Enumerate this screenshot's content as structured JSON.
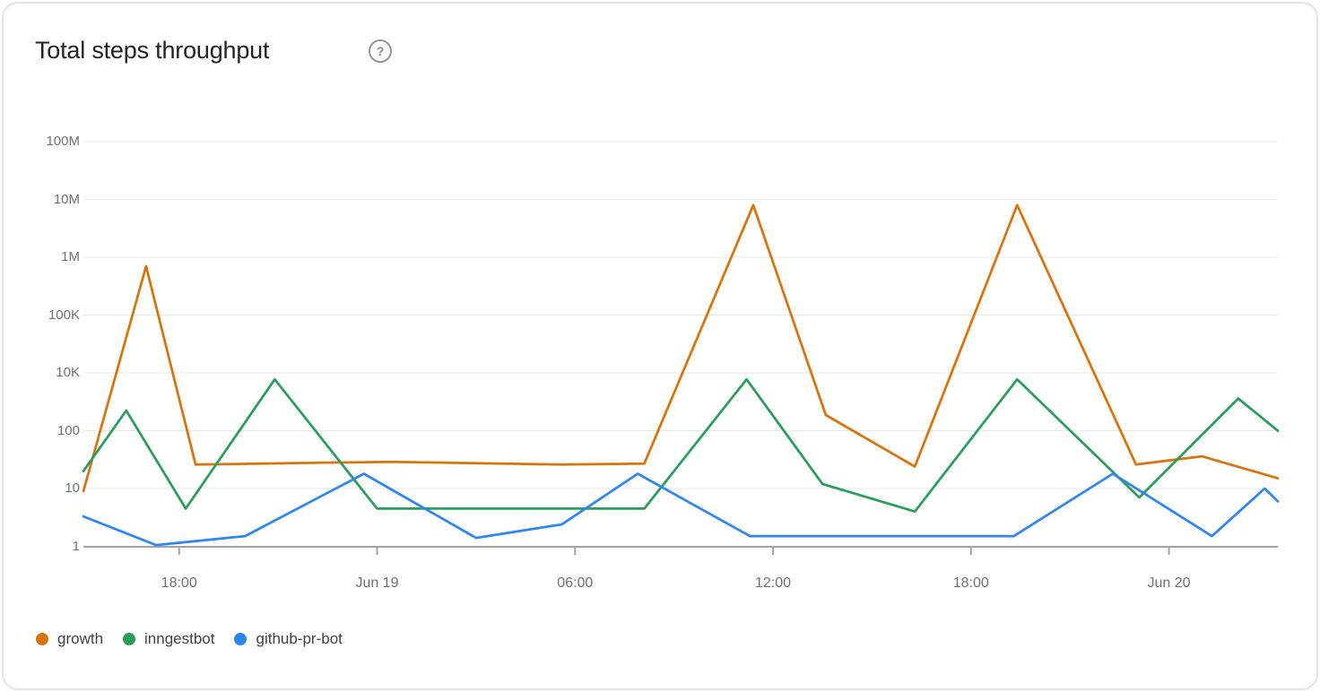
{
  "header": {
    "help_glyph": "?"
  },
  "chart_data": {
    "type": "line",
    "title": "Total steps throughput",
    "y_scale": "log",
    "y_axis_labels_top_to_bottom": [
      "100M",
      "10M",
      "1M",
      "100K",
      "10K",
      "100",
      "10",
      "1"
    ],
    "y_axis_anchor_exponents_bottom_to_top": [
      0,
      1,
      2,
      4,
      5,
      6,
      7,
      8
    ],
    "x_unit": "hours since Jun 18 15:00",
    "x_range": {
      "t_min": 0.1,
      "t_max": 36.3
    },
    "x_axis_ticks": [
      {
        "t": 3,
        "label": "18:00"
      },
      {
        "t": 9,
        "label": "Jun 19"
      },
      {
        "t": 15,
        "label": "06:00"
      },
      {
        "t": 21,
        "label": "12:00"
      },
      {
        "t": 27,
        "label": "18:00"
      },
      {
        "t": 33,
        "label": "Jun 20"
      }
    ],
    "series": [
      {
        "name": "growth",
        "color": "#D9730D",
        "points": [
          {
            "t": 0.1,
            "v": 9
          },
          {
            "t": 2.0,
            "v": 700000
          },
          {
            "t": 3.5,
            "v": 26
          },
          {
            "t": 9.4,
            "v": 29
          },
          {
            "t": 14.6,
            "v": 26
          },
          {
            "t": 17.1,
            "v": 27
          },
          {
            "t": 20.4,
            "v": 8000000
          },
          {
            "t": 22.6,
            "v": 350
          },
          {
            "t": 25.3,
            "v": 24
          },
          {
            "t": 28.4,
            "v": 8000000
          },
          {
            "t": 32.0,
            "v": 26
          },
          {
            "t": 34.0,
            "v": 36
          },
          {
            "t": 36.3,
            "v": 15
          }
        ]
      },
      {
        "name": "inngestbot",
        "color": "#2A9D5C",
        "points": [
          {
            "t": 0.1,
            "v": 20
          },
          {
            "t": 1.4,
            "v": 500
          },
          {
            "t": 3.2,
            "v": 4.5
          },
          {
            "t": 5.9,
            "v": 6000
          },
          {
            "t": 9.0,
            "v": 4.5
          },
          {
            "t": 17.1,
            "v": 4.5
          },
          {
            "t": 20.2,
            "v": 6000
          },
          {
            "t": 22.5,
            "v": 12
          },
          {
            "t": 25.3,
            "v": 4
          },
          {
            "t": 28.4,
            "v": 6000
          },
          {
            "t": 32.1,
            "v": 7
          },
          {
            "t": 35.1,
            "v": 1300
          },
          {
            "t": 36.3,
            "v": 100
          }
        ]
      },
      {
        "name": "github-pr-bot",
        "color": "#2F86F0",
        "points": [
          {
            "t": 0.1,
            "v": 3.3
          },
          {
            "t": 2.3,
            "v": 1.05
          },
          {
            "t": 5.0,
            "v": 1.5
          },
          {
            "t": 8.6,
            "v": 18
          },
          {
            "t": 12.0,
            "v": 1.4
          },
          {
            "t": 14.6,
            "v": 2.4
          },
          {
            "t": 16.9,
            "v": 18
          },
          {
            "t": 20.3,
            "v": 1.5
          },
          {
            "t": 28.3,
            "v": 1.5
          },
          {
            "t": 31.3,
            "v": 18
          },
          {
            "t": 34.3,
            "v": 1.5
          },
          {
            "t": 35.9,
            "v": 10
          },
          {
            "t": 36.3,
            "v": 6
          }
        ]
      }
    ],
    "grid": true,
    "legend_position": "bottom-left"
  }
}
